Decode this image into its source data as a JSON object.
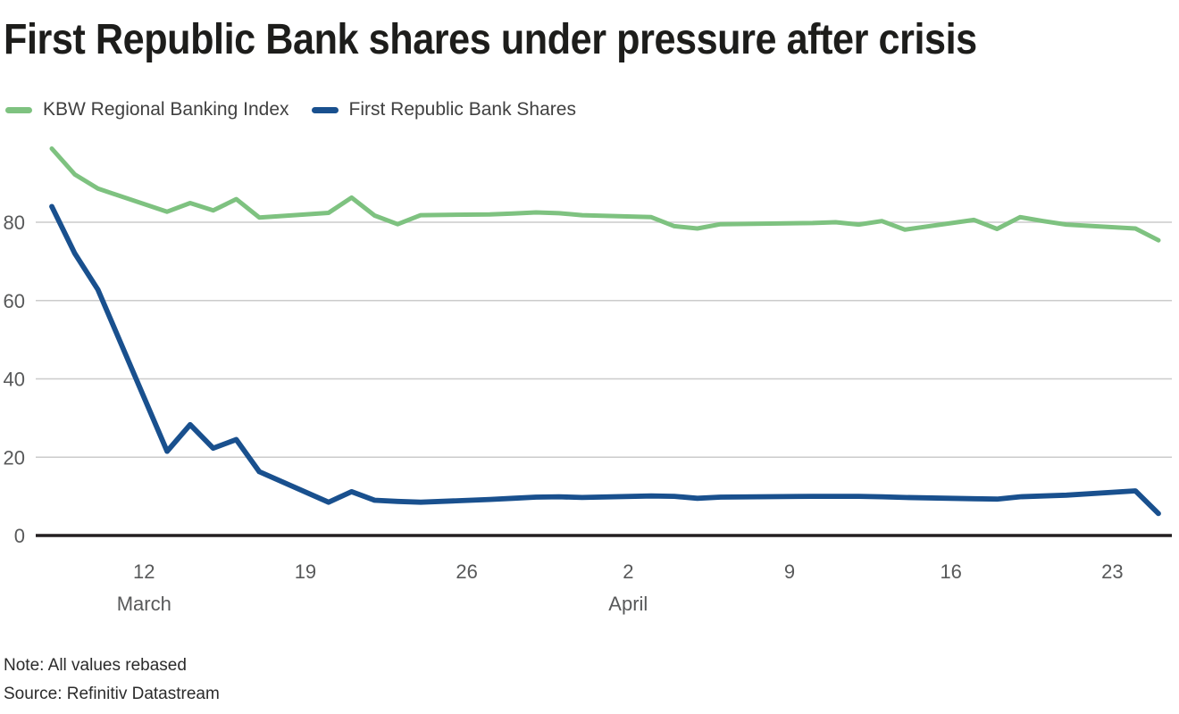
{
  "title": "First Republic Bank shares under pressure after crisis",
  "notes": {
    "note": "Note: All values rebased",
    "source": "Source: Refinitiv Datastream"
  },
  "colors": {
    "grid": "#cbcbcb",
    "axis": "#231f20",
    "tick_text": "#58595a",
    "title_text": "#1d1d1b"
  },
  "chart_data": {
    "type": "line",
    "title": "First Republic Bank shares under pressure after crisis",
    "xlabel": "",
    "ylabel": "",
    "ylim": [
      0,
      100
    ],
    "grid": true,
    "legend_position": "top-left",
    "note": "Note: All values rebased",
    "source": "Source: Refinitiv Datastream",
    "x_dates": [
      "2023-03-08",
      "2023-03-09",
      "2023-03-10",
      "2023-03-13",
      "2023-03-14",
      "2023-03-15",
      "2023-03-16",
      "2023-03-17",
      "2023-03-20",
      "2023-03-21",
      "2023-03-22",
      "2023-03-23",
      "2023-03-24",
      "2023-03-27",
      "2023-03-28",
      "2023-03-29",
      "2023-03-30",
      "2023-03-31",
      "2023-04-03",
      "2023-04-04",
      "2023-04-05",
      "2023-04-06",
      "2023-04-10",
      "2023-04-11",
      "2023-04-12",
      "2023-04-13",
      "2023-04-14",
      "2023-04-17",
      "2023-04-18",
      "2023-04-19",
      "2023-04-20",
      "2023-04-21",
      "2023-04-24",
      "2023-04-25"
    ],
    "series": [
      {
        "name": "KBW Regional Banking Index",
        "color": "#7ec280",
        "values": [
          98.8,
          92.2,
          88.6,
          82.7,
          84.9,
          83.0,
          85.9,
          81.2,
          82.4,
          86.3,
          81.7,
          79.5,
          81.8,
          82.0,
          82.2,
          82.5,
          82.3,
          81.8,
          81.3,
          79.0,
          78.4,
          79.5,
          79.8,
          80.0,
          79.4,
          80.3,
          78.1,
          80.6,
          78.3,
          81.3,
          80.3,
          79.4,
          78.4,
          75.4
        ]
      },
      {
        "name": "First Republic Bank Shares",
        "color": "#19508e",
        "values": [
          84.0,
          72.0,
          62.8,
          21.5,
          28.3,
          22.3,
          24.5,
          16.3,
          8.5,
          11.2,
          9.0,
          8.7,
          8.5,
          9.2,
          9.5,
          9.8,
          9.9,
          9.7,
          10.1,
          10.0,
          9.5,
          9.8,
          10.0,
          10.0,
          10.0,
          9.9,
          9.7,
          9.4,
          9.3,
          9.9,
          10.1,
          10.3,
          11.4,
          5.6
        ]
      }
    ],
    "yticks": [
      0,
      20,
      40,
      60,
      80
    ],
    "xticks": [
      {
        "date": "2023-03-12",
        "label": "12"
      },
      {
        "date": "2023-03-19",
        "label": "19"
      },
      {
        "date": "2023-03-26",
        "label": "26"
      },
      {
        "date": "2023-04-02",
        "label": "2"
      },
      {
        "date": "2023-04-09",
        "label": "9"
      },
      {
        "date": "2023-04-16",
        "label": "16"
      },
      {
        "date": "2023-04-23",
        "label": "23"
      }
    ],
    "month_labels": [
      {
        "date": "2023-03-12",
        "label": "March"
      },
      {
        "date": "2023-04-02",
        "label": "April"
      }
    ]
  }
}
